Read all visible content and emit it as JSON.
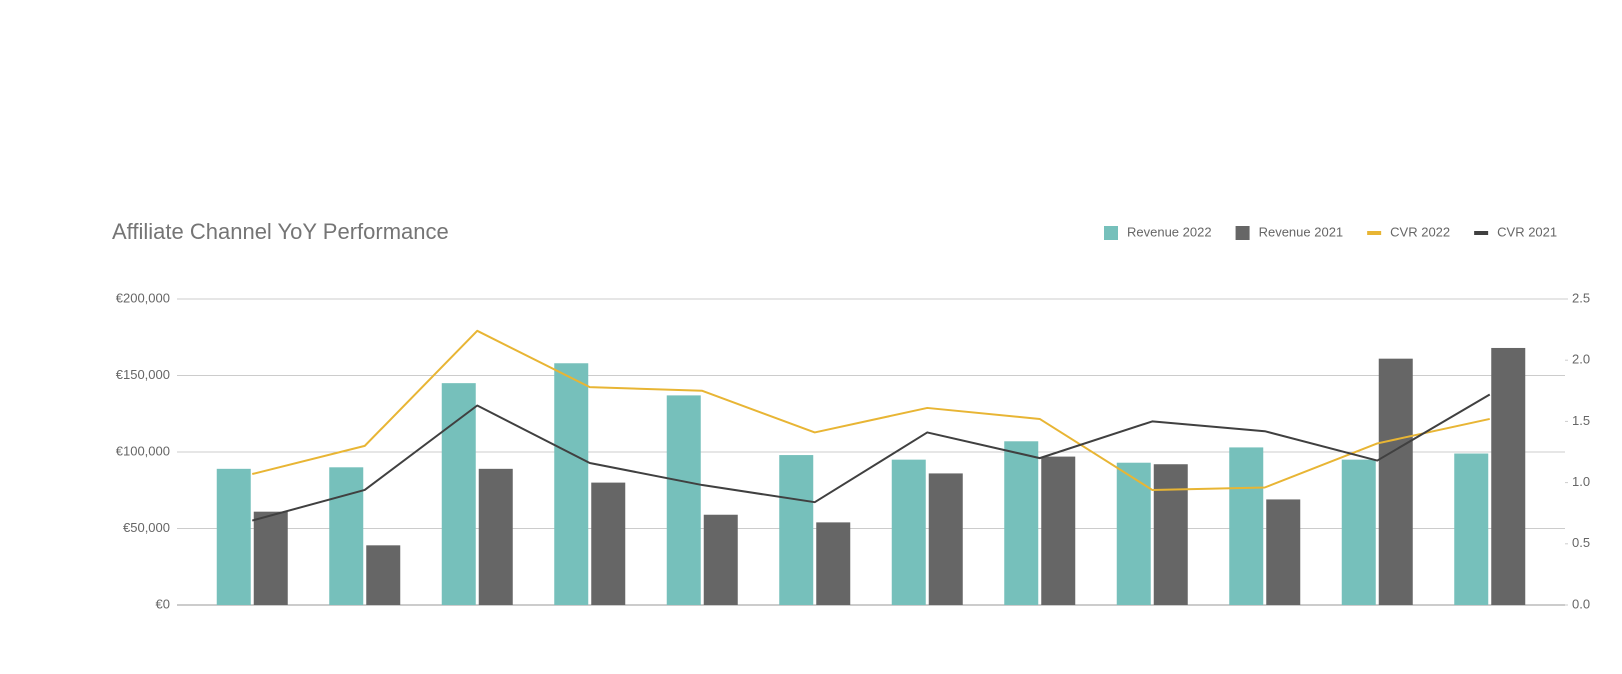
{
  "chart_data": {
    "type": "bar-line",
    "title": "Affiliate Channel YoY Performance",
    "categories": [
      null,
      null,
      null,
      null,
      null,
      null,
      null,
      null,
      null,
      null,
      null,
      null
    ],
    "series": [
      {
        "name": "Revenue 2022",
        "type": "bar",
        "color": "#76c0bb",
        "values": [
          89000,
          90000,
          145000,
          158000,
          137000,
          98000,
          95000,
          107000,
          93000,
          103000,
          95000,
          99000
        ]
      },
      {
        "name": "Revenue 2021",
        "type": "bar",
        "color": "#666666",
        "values": [
          61000,
          39000,
          89000,
          80000,
          59000,
          54000,
          86000,
          97000,
          92000,
          69000,
          161000,
          168000
        ]
      },
      {
        "name": "CVR 2022",
        "type": "line",
        "axis": "y2",
        "color": "#e8b534",
        "values": [
          1.07,
          1.3,
          2.24,
          1.78,
          1.75,
          1.41,
          1.61,
          1.52,
          0.94,
          0.96,
          1.32,
          1.52
        ]
      },
      {
        "name": "CVR 2021",
        "type": "line",
        "axis": "y2",
        "color": "#404040",
        "values": [
          0.69,
          0.94,
          1.63,
          1.16,
          0.98,
          0.84,
          1.41,
          1.2,
          1.5,
          1.42,
          1.18,
          1.72
        ]
      }
    ],
    "ylim": [
      0,
      200000
    ],
    "yticks": [
      {
        "value": 0,
        "label": "€0"
      },
      {
        "value": 50000,
        "label": "€50,000"
      },
      {
        "value": 100000,
        "label": "€100,000"
      },
      {
        "value": 150000,
        "label": "€150,000"
      },
      {
        "value": 200000,
        "label": "€200,000"
      }
    ],
    "y2lim": [
      0,
      2.5
    ],
    "y2ticks": [
      {
        "value": 0,
        "label": "0.0"
      },
      {
        "value": 0.5,
        "label": "0.5"
      },
      {
        "value": 1,
        "label": "1.0"
      },
      {
        "value": 1.5,
        "label": "1.5"
      },
      {
        "value": 2,
        "label": "2.0"
      },
      {
        "value": 2.5,
        "label": "2.5"
      }
    ],
    "grid": true,
    "legend": "top-right"
  }
}
